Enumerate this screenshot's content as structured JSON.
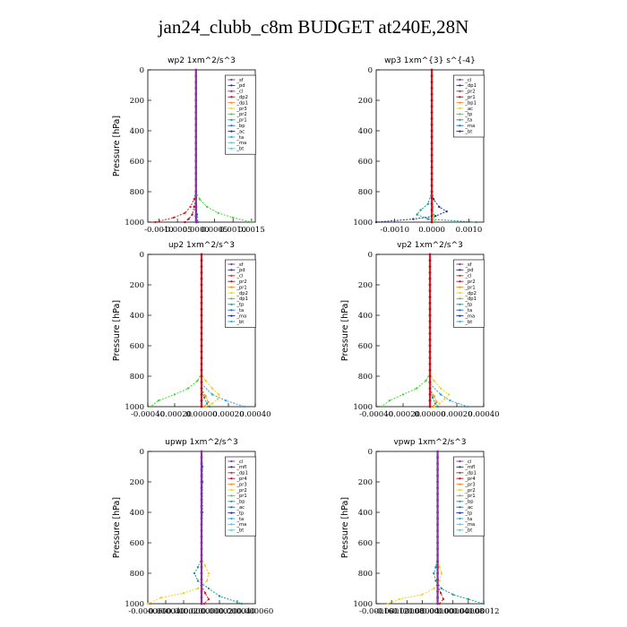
{
  "title": "jan24_clubb_c8m  BUDGET at240E,28N",
  "colors": {
    "purple": "#8c2fa3",
    "darkblue": "#1f2bd0",
    "red": "#e31b1b",
    "darkred": "#b01030",
    "orange": "#ff8c1a",
    "yellow": "#f2d21a",
    "green": "#44d63a",
    "teal": "#14a090",
    "blue": "#2266d8",
    "navy": "#1a2e8a",
    "lightblue": "#2aa8e0",
    "cyan": "#20e0e0"
  },
  "chart_data": [
    {
      "id": "wp2",
      "type": "line",
      "title": "wp2   1xm^2/s^3",
      "ylabel": "Pressure [hPa]",
      "xlim": [
        -0.0013,
        0.0016
      ],
      "ylim": [
        1000,
        0
      ],
      "xticks": [
        -0.001,
        -0.0005,
        0,
        0.0005,
        0.001,
        0.0015
      ],
      "xtick_labels": [
        "-0.0010",
        "-0.0005",
        "0.0000",
        "0.0005",
        "0.0010",
        "0.0015"
      ],
      "yticks": [
        0,
        200,
        400,
        600,
        800,
        1000
      ],
      "legend": [
        "_sf",
        "_pd",
        "_cl",
        "_dp2",
        "_dp1",
        "_pr3",
        "_pr2",
        "_pr1",
        "_bp",
        "_ac",
        "_ta",
        "_ma",
        "_bt"
      ],
      "series": [
        {
          "name": "_pr1",
          "color": "green",
          "y": [
            800,
            850,
            900,
            940,
            970,
            1000
          ],
          "x": [
            0,
            0.0001,
            0.0003,
            0.0006,
            0.001,
            0.0015
          ]
        },
        {
          "name": "_dp1",
          "color": "red",
          "y": [
            800,
            850,
            900,
            940,
            970,
            1000
          ],
          "x": [
            0,
            -5e-05,
            -0.00015,
            -0.0003,
            -0.0006,
            -0.0011
          ]
        },
        {
          "name": "_dp2",
          "color": "darkred",
          "y": [
            850,
            900,
            950,
            980,
            1000
          ],
          "x": [
            0,
            -5e-05,
            -0.0001,
            -0.0002,
            -0.0003
          ]
        },
        {
          "name": "_bp",
          "color": "blue",
          "y": [
            900,
            950,
            1000
          ],
          "x": [
            0,
            3e-05,
            5e-05
          ]
        },
        {
          "name": "_sf",
          "color": "purple",
          "y": [
            0,
            200,
            400,
            600,
            800,
            900,
            1000
          ],
          "x": [
            0,
            0,
            0,
            0,
            0,
            1e-05,
            2e-05
          ]
        }
      ]
    },
    {
      "id": "wp3",
      "type": "line",
      "title": "wp3   1xm^{3} s^{-4}",
      "ylabel": "",
      "xlim": [
        -0.0015,
        0.0014
      ],
      "ylim": [
        1000,
        0
      ],
      "xticks": [
        -0.001,
        0,
        0.001
      ],
      "xtick_labels": [
        "-0.0010",
        "0.0000",
        "0.0010"
      ],
      "yticks": [
        0,
        200,
        400,
        600,
        800,
        1000
      ],
      "legend": [
        "_cl",
        "_dp1",
        "_pr2",
        "_pr1",
        "_bp1",
        "_ac",
        "_tp",
        "_ta",
        "_ma",
        "_bt"
      ],
      "series": [
        {
          "name": "_ta",
          "color": "navy",
          "y": [
            800,
            850,
            900,
            930,
            960,
            980,
            1000
          ],
          "x": [
            0,
            5e-05,
            0.0002,
            0.0004,
            0.0001,
            -0.0005,
            -0.0015
          ]
        },
        {
          "name": "_tp",
          "color": "teal",
          "y": [
            800,
            880,
            920,
            950,
            980,
            1000
          ],
          "x": [
            0,
            -0.0001,
            -0.0003,
            -0.0004,
            -0.0001,
            0.0012
          ]
        },
        {
          "name": "_pr1",
          "color": "green",
          "y": [
            800,
            900,
            950,
            1000
          ],
          "x": [
            0,
            3e-05,
            5e-05,
            8e-05
          ]
        },
        {
          "name": "_cl",
          "color": "red",
          "y": [
            0,
            200,
            400,
            600,
            800,
            1000
          ],
          "x": [
            0,
            0,
            0,
            0,
            0,
            0
          ]
        }
      ]
    },
    {
      "id": "up2",
      "type": "line",
      "title": "up2   1xm^2/s^3",
      "ylabel": "Pressure [hPa]",
      "xlim": [
        -0.0004,
        0.0004
      ],
      "ylim": [
        1000,
        0
      ],
      "xticks": [
        -0.0004,
        -0.0002,
        0,
        0.0002,
        0.0004
      ],
      "xtick_labels": [
        "-0.00040",
        "-0.00020",
        "0.00000",
        "0.00020",
        "0.00040"
      ],
      "yticks": [
        0,
        200,
        400,
        600,
        800,
        1000
      ],
      "legend": [
        "_sf",
        "_pd",
        "_cl",
        "_pr2",
        "_pr1",
        "_dp2",
        "_dp1",
        "_tp",
        "_ta",
        "_ma",
        "_bt"
      ],
      "series": [
        {
          "name": "_dp1",
          "color": "green",
          "y": [
            780,
            830,
            880,
            920,
            960,
            1000
          ],
          "x": [
            0,
            -3e-05,
            -0.0001,
            -0.0002,
            -0.00032,
            -0.00038
          ]
        },
        {
          "name": "_pr1",
          "color": "yellow",
          "y": [
            780,
            830,
            880,
            920,
            950,
            980,
            1000
          ],
          "x": [
            0,
            3e-05,
            8e-05,
            0.00013,
            0.00012,
            8e-05,
            3e-05
          ]
        },
        {
          "name": "_tp",
          "color": "lightblue",
          "y": [
            850,
            920,
            960,
            1000
          ],
          "x": [
            0,
            8e-05,
            0.00018,
            0.00032
          ]
        },
        {
          "name": "_pr2",
          "color": "orange",
          "y": [
            880,
            930,
            970,
            1000
          ],
          "x": [
            0,
            3e-05,
            5e-05,
            2e-05
          ]
        },
        {
          "name": "_dp2",
          "color": "teal",
          "y": [
            880,
            940,
            980,
            1000
          ],
          "x": [
            0,
            2e-05,
            4e-05,
            6e-05
          ]
        },
        {
          "name": "_cl",
          "color": "red",
          "y": [
            0,
            200,
            400,
            600,
            800,
            1000
          ],
          "x": [
            0,
            0,
            0,
            0,
            0,
            0
          ]
        }
      ]
    },
    {
      "id": "vp2",
      "type": "line",
      "title": "vp2   1xm^2/s^3",
      "ylabel": "Pressure [hPa]",
      "xlim": [
        -0.0004,
        0.0004
      ],
      "ylim": [
        1000,
        0
      ],
      "xticks": [
        -0.0004,
        -0.0002,
        0,
        0.0002,
        0.0004
      ],
      "xtick_labels": [
        "-0.00040",
        "-0.00020",
        "0.00000",
        "0.00020",
        "0.00040"
      ],
      "yticks": [
        0,
        200,
        400,
        600,
        800,
        1000
      ],
      "legend": [
        "_sf",
        "_pd",
        "_cl",
        "_pr2",
        "_pr1",
        "_dp2",
        "_dp1",
        "_tp",
        "_ta",
        "_ma",
        "_bt"
      ],
      "series": [
        {
          "name": "_dp1",
          "color": "green",
          "y": [
            780,
            830,
            880,
            920,
            960,
            1000
          ],
          "x": [
            0,
            -3e-05,
            -0.0001,
            -0.0002,
            -0.0003,
            -0.00036
          ]
        },
        {
          "name": "_pr1",
          "color": "yellow",
          "y": [
            780,
            830,
            880,
            920,
            950,
            980,
            1000
          ],
          "x": [
            0,
            3e-05,
            8e-05,
            0.00014,
            0.00011,
            7e-05,
            3e-05
          ]
        },
        {
          "name": "_tp",
          "color": "lightblue",
          "y": [
            850,
            920,
            960,
            1000
          ],
          "x": [
            0,
            8e-05,
            0.00015,
            0.00028
          ]
        },
        {
          "name": "_pr2",
          "color": "orange",
          "y": [
            880,
            930,
            970,
            1000
          ],
          "x": [
            0,
            3e-05,
            5e-05,
            2e-05
          ]
        },
        {
          "name": "_dp2",
          "color": "teal",
          "y": [
            880,
            940,
            980,
            1000
          ],
          "x": [
            0,
            2e-05,
            4e-05,
            6e-05
          ]
        },
        {
          "name": "_cl",
          "color": "red",
          "y": [
            0,
            200,
            400,
            600,
            800,
            1000
          ],
          "x": [
            0,
            0,
            0,
            0,
            0,
            0
          ]
        }
      ]
    },
    {
      "id": "upwp",
      "type": "line",
      "title": "upwp   1xm^2/s^3",
      "ylabel": "Pressure [hPa]",
      "xlim": [
        -6e-05,
        6e-05
      ],
      "ylim": [
        1000,
        0
      ],
      "xticks": [
        -6e-05,
        -4e-05,
        -2e-05,
        0,
        2e-05,
        4e-05,
        6e-05
      ],
      "xtick_labels": [
        "-0.000060",
        "-0.000040",
        "-0.000020",
        "0.000000",
        "0.000020",
        "0.000040",
        "0.000060"
      ],
      "yticks": [
        0,
        200,
        400,
        600,
        800,
        1000
      ],
      "legend": [
        "_cl",
        "_mfl",
        "_dp1",
        "_pr4",
        "_pr3",
        "_pr2",
        "_pr1",
        "_bp",
        "_ac",
        "_tp",
        "_ta",
        "_ma",
        "_bt"
      ],
      "series": [
        {
          "name": "_pr1",
          "color": "yellow",
          "y": [
            700,
            750,
            800,
            850,
            900,
            930,
            960,
            1000
          ],
          "x": [
            0,
            4e-06,
            8e-06,
            6e-06,
            -4e-06,
            -2e-05,
            -4.5e-05,
            -6e-05
          ]
        },
        {
          "name": "_tp",
          "color": "teal",
          "y": [
            700,
            760,
            800,
            850,
            900,
            950,
            1000
          ],
          "x": [
            0,
            -4e-06,
            -8e-06,
            -4e-06,
            8e-06,
            2e-05,
            4.5e-05
          ]
        },
        {
          "name": "_ac",
          "color": "blue",
          "y": [
            0,
            100,
            200,
            400,
            600,
            800,
            1000
          ],
          "x": [
            0,
            1e-06,
            1e-06,
            1e-06,
            0,
            0,
            0
          ]
        },
        {
          "name": "_dp1",
          "color": "red",
          "y": [
            880,
            930,
            970,
            1000
          ],
          "x": [
            0,
            4e-06,
            8e-06,
            3e-06
          ]
        },
        {
          "name": "_cl",
          "color": "purple",
          "y": [
            0,
            200,
            400,
            600,
            800,
            1000
          ],
          "x": [
            0,
            0,
            0,
            0,
            0,
            0
          ]
        }
      ]
    },
    {
      "id": "vpwp",
      "type": "line",
      "title": "vpwp   1xm^2/s^3",
      "ylabel": "Pressure [hPa]",
      "xlim": [
        -0.00016,
        0.00012
      ],
      "ylim": [
        1000,
        0
      ],
      "xticks": [
        -0.00016,
        -0.00012,
        -8e-05,
        -4e-05,
        0,
        4e-05,
        8e-05,
        0.00012
      ],
      "xtick_labels": [
        "-0.00016",
        "-0.00012",
        "-0.00008",
        "-0.00004",
        "0.00000",
        "0.00004",
        "0.00008",
        "0.00012"
      ],
      "yticks": [
        0,
        200,
        400,
        600,
        800,
        1000
      ],
      "legend": [
        "_cl",
        "_mfl",
        "_dp1",
        "_pr4",
        "_pr3",
        "_pr2",
        "_pr1",
        "_bp",
        "_ac",
        "_tp",
        "_ta",
        "_ma",
        "_bt"
      ],
      "series": [
        {
          "name": "_pr1",
          "color": "yellow",
          "y": [
            700,
            760,
            800,
            850,
            900,
            940,
            970,
            1000
          ],
          "x": [
            0,
            5e-06,
            1e-05,
            5e-06,
            -1e-05,
            -4e-05,
            -0.0001,
            -0.00013
          ]
        },
        {
          "name": "_tp",
          "color": "teal",
          "y": [
            700,
            760,
            800,
            850,
            900,
            940,
            970,
            1000
          ],
          "x": [
            0,
            -5e-06,
            -1e-05,
            -5e-06,
            1e-05,
            4e-05,
            8e-05,
            0.00012
          ]
        },
        {
          "name": "_dp1",
          "color": "red",
          "y": [
            880,
            930,
            970,
            1000
          ],
          "x": [
            0,
            8e-06,
            1.5e-05,
            5e-06
          ]
        },
        {
          "name": "_cl",
          "color": "purple",
          "y": [
            0,
            200,
            400,
            600,
            800,
            1000
          ],
          "x": [
            0,
            0,
            0,
            0,
            0,
            0
          ]
        }
      ]
    }
  ]
}
